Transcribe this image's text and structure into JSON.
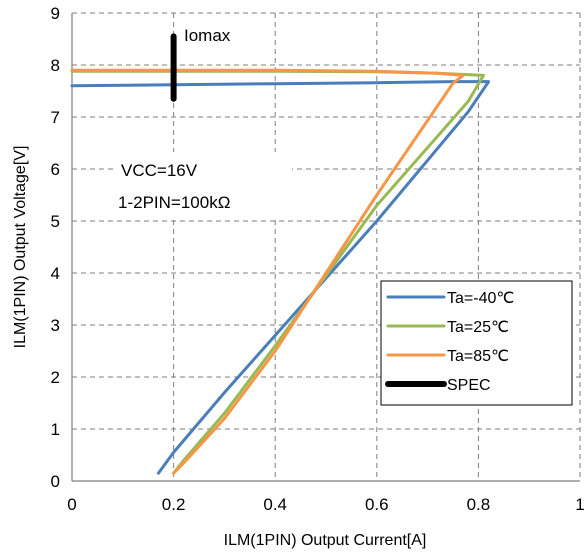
{
  "chart_data": {
    "type": "line",
    "xlabel": "ILM(1PIN) Output Current[A]",
    "ylabel": "ILM(1PIN) Output Voltage[V]",
    "xlim": [
      0,
      1
    ],
    "ylim": [
      0,
      9
    ],
    "xticks": [
      "0",
      "0.2",
      "0.4",
      "0.6",
      "0.8",
      "1"
    ],
    "yticks": [
      "0",
      "1",
      "2",
      "3",
      "4",
      "5",
      "6",
      "7",
      "8",
      "9"
    ],
    "grid": "dashed",
    "legend_position": "bottom-right",
    "annotations": {
      "iomax": "Iomax",
      "vcc": "VCC=16V",
      "pin": "1-2PIN=100kΩ"
    },
    "series": [
      {
        "name": "Ta=-40℃",
        "color": "#4a7ebb",
        "x": [
          0,
          0.2,
          0.4,
          0.6,
          0.75,
          0.82,
          0.78,
          0.6,
          0.4,
          0.3,
          0.2,
          0.17
        ],
        "y": [
          7.6,
          7.62,
          7.64,
          7.66,
          7.68,
          7.68,
          7.1,
          5.0,
          2.8,
          1.7,
          0.55,
          0.15
        ]
      },
      {
        "name": "Ta=25℃",
        "color": "#98b954",
        "x": [
          0,
          0.2,
          0.4,
          0.6,
          0.72,
          0.81,
          0.78,
          0.6,
          0.4,
          0.3,
          0.22,
          0.2
        ],
        "y": [
          7.88,
          7.88,
          7.88,
          7.87,
          7.84,
          7.8,
          7.3,
          5.3,
          2.6,
          1.3,
          0.4,
          0.15
        ]
      },
      {
        "name": "Ta=85℃",
        "color": "#f79646",
        "x": [
          0,
          0.2,
          0.4,
          0.6,
          0.72,
          0.77,
          0.75,
          0.6,
          0.4,
          0.3,
          0.22,
          0.2
        ],
        "y": [
          7.9,
          7.9,
          7.9,
          7.88,
          7.84,
          7.8,
          7.65,
          5.5,
          2.5,
          1.2,
          0.35,
          0.15
        ]
      },
      {
        "name": "SPEC",
        "color": "#000000",
        "x": [
          0.2,
          0.2
        ],
        "y": [
          7.35,
          8.55
        ]
      }
    ]
  }
}
